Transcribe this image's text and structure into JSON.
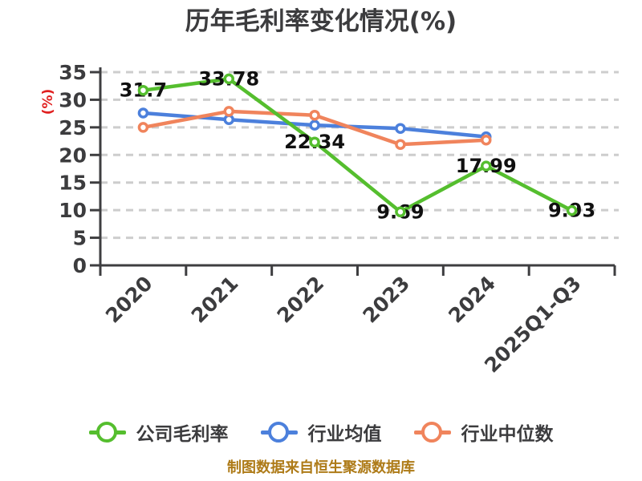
{
  "title": "历年毛利率变化情况(%)",
  "footer": "制图数据来自恒生聚源数据库",
  "chart_data": {
    "type": "line",
    "title": "历年毛利率变化情况(%)",
    "ylabel": "(%)",
    "xlabel": "",
    "categories": [
      "2020",
      "2021",
      "2022",
      "2023",
      "2024",
      "2025Q1-Q3"
    ],
    "ylim": [
      0,
      35
    ],
    "ytick_step": 5,
    "grid": "horizontal-dashed",
    "legend_position": "bottom",
    "series": [
      {
        "name": "公司毛利率",
        "color": "#55BE2E",
        "values": [
          31.7,
          33.78,
          22.34,
          9.69,
          17.99,
          9.93
        ],
        "labels_shown": true
      },
      {
        "name": "行业均值",
        "color": "#4C80DC",
        "values": [
          27.6,
          26.4,
          25.4,
          24.8,
          23.3,
          null
        ],
        "labels_shown": false
      },
      {
        "name": "行业中位数",
        "color": "#F0845C",
        "values": [
          25,
          27.9,
          27.2,
          21.9,
          22.7,
          null
        ],
        "labels_shown": false
      }
    ],
    "colors": {
      "title_text": "#3C3C3E",
      "tick_text": "#3C3C3E",
      "value_text": "#101010",
      "axis": "#3E3E40",
      "grid": "#CDCDCD",
      "ylabel_text": "#E02020",
      "footer_text": "#AE7B18",
      "marker_fill": "#FFFFFF",
      "background": "#FFFFFF"
    }
  }
}
